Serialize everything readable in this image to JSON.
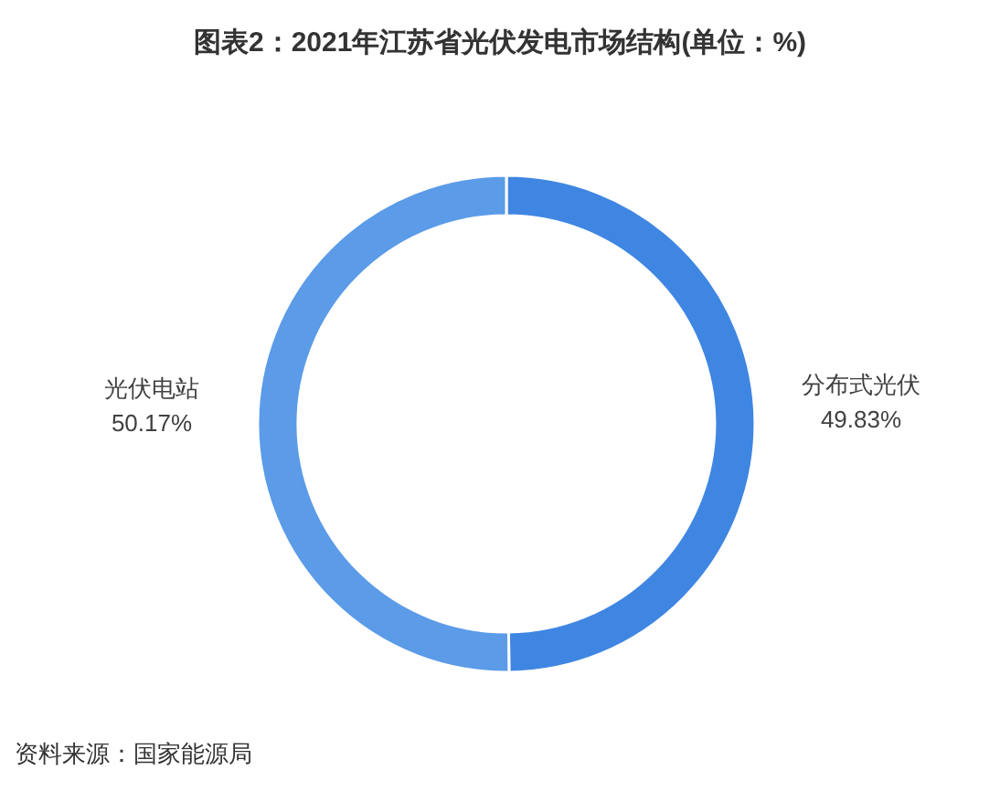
{
  "chart_data": {
    "type": "donut",
    "title": "图表2：2021年江苏省光伏发电市场结构(单位：%)",
    "categories": [
      "分布式光伏",
      "光伏电站"
    ],
    "values": [
      49.83,
      50.17
    ],
    "colors": [
      "#3f86e2",
      "#5b9be8"
    ],
    "value_labels": [
      "49.83%",
      "50.17%"
    ],
    "annotations": [
      "资料来源：国家能源局"
    ]
  }
}
